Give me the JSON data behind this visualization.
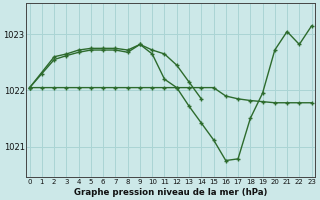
{
  "title": "Graphe pression niveau de la mer (hPa)",
  "bg_color": "#cce8e8",
  "grid_color": "#aad4d4",
  "line_color": "#2d6b2d",
  "x_ticks": [
    0,
    1,
    2,
    3,
    4,
    5,
    6,
    7,
    8,
    9,
    10,
    11,
    12,
    13,
    14,
    15,
    16,
    17,
    18,
    19,
    20,
    21,
    22,
    23
  ],
  "y_ticks": [
    1021,
    1022,
    1023
  ],
  "ylim": [
    1020.45,
    1023.55
  ],
  "xlim": [
    -0.3,
    23.3
  ],
  "line1_x": [
    0,
    1,
    2,
    3,
    4,
    5,
    6,
    7,
    8,
    9,
    10,
    11,
    12,
    13,
    14,
    15,
    16,
    17,
    18,
    19,
    20,
    21,
    22,
    23
  ],
  "line1_y": [
    1022.05,
    1022.05,
    1022.05,
    1022.05,
    1022.05,
    1022.05,
    1022.05,
    1022.05,
    1022.05,
    1022.05,
    1022.05,
    1022.05,
    1022.05,
    1022.05,
    1022.05,
    1022.05,
    1021.9,
    1021.85,
    1021.82,
    1021.8,
    1021.78,
    1021.78,
    1021.78,
    1021.78
  ],
  "line2_x": [
    0,
    2,
    3,
    4,
    5,
    6,
    7,
    8,
    9,
    10,
    11,
    12,
    13,
    14
  ],
  "line2_y": [
    1022.05,
    1022.6,
    1022.65,
    1022.72,
    1022.75,
    1022.75,
    1022.75,
    1022.72,
    1022.82,
    1022.72,
    1022.65,
    1022.45,
    1022.15,
    1021.85
  ],
  "line3_x": [
    0,
    1,
    2,
    3,
    4,
    5,
    6,
    7,
    8,
    9,
    10,
    11,
    12,
    13,
    14,
    15,
    16,
    17,
    18,
    19,
    20,
    21,
    22,
    23
  ],
  "line3_y": [
    1022.05,
    1022.3,
    1022.55,
    1022.62,
    1022.68,
    1022.72,
    1022.72,
    1022.72,
    1022.68,
    1022.82,
    1022.65,
    1022.2,
    1022.05,
    1021.72,
    1021.42,
    1021.12,
    1020.75,
    1020.78,
    1021.5,
    1021.95,
    1022.72,
    1023.05,
    1022.82,
    1023.15
  ]
}
